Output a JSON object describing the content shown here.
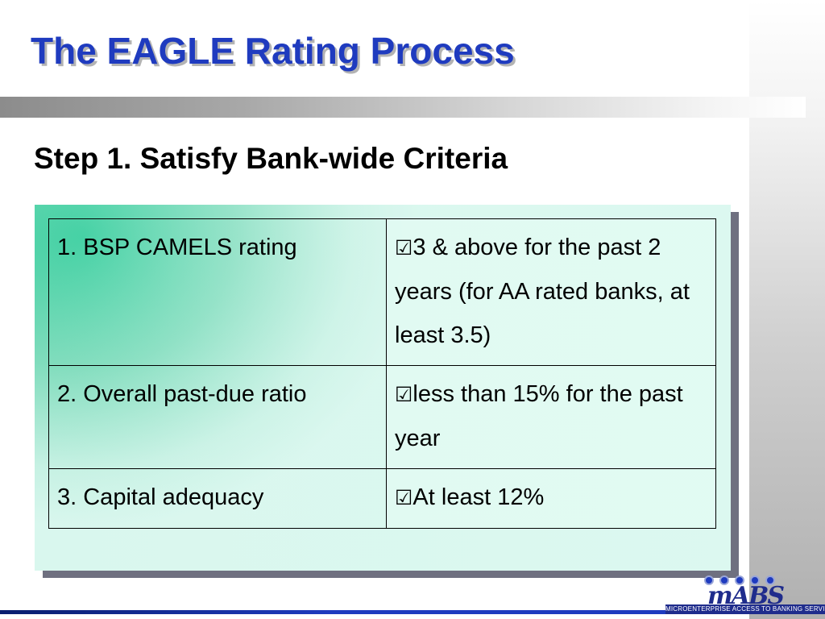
{
  "slide": {
    "title": "The EAGLE Rating Process",
    "subtitle": "Step 1. Satisfy Bank-wide Criteria"
  },
  "check_symbol": "☑",
  "criteria": [
    {
      "name": "1. BSP CAMELS rating",
      "requirement": "3 & above for the past 2 years (for AA rated banks, at least 3.5)"
    },
    {
      "name": "2. Overall past-due ratio",
      "requirement": "less than 15% for the past year"
    },
    {
      "name": "3. Capital adequacy",
      "requirement": "At least 12%"
    }
  ],
  "logo": {
    "wordmark": "mABS",
    "tagline": "MICROENTERPRISE ACCESS TO BANKING SERVICES"
  },
  "colors": {
    "title": "#1f3bbf",
    "panel": "#3ccfa0",
    "brand": "#1f2c8c"
  }
}
